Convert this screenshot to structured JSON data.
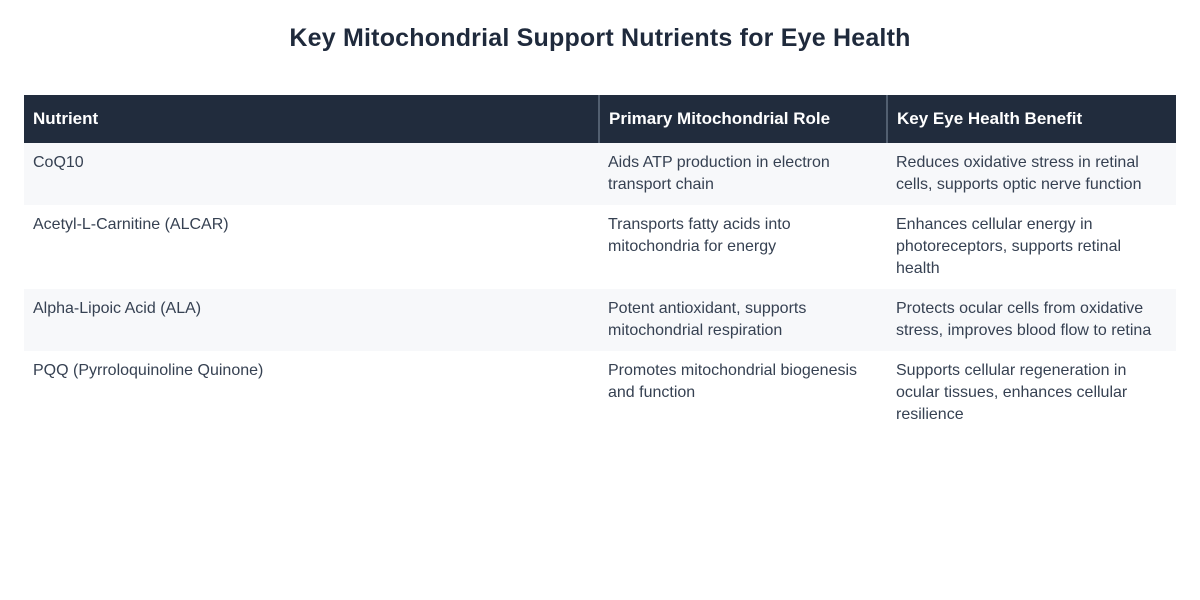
{
  "page": {
    "title": "Key Mitochondrial Support Nutrients for Eye Health"
  },
  "table": {
    "columns": [
      {
        "label": "Nutrient"
      },
      {
        "label": "Primary Mitochondrial Role"
      },
      {
        "label": "Key Eye Health Benefit"
      }
    ],
    "rows": [
      {
        "nutrient": "CoQ10",
        "role": "Aids ATP production in electron transport chain",
        "benefit": "Reduces oxidative stress in retinal cells, supports optic nerve function"
      },
      {
        "nutrient": "Acetyl-L-Carnitine (ALCAR)",
        "role": "Transports fatty acids into mitochondria for energy",
        "benefit": "Enhances cellular energy in photoreceptors, supports retinal health"
      },
      {
        "nutrient": "Alpha-Lipoic Acid (ALA)",
        "role": "Potent antioxidant, supports mitochondrial respiration",
        "benefit": "Protects ocular cells from oxidative stress, improves blood flow to retina"
      },
      {
        "nutrient": "PQQ (Pyrroloquinoline Quinone)",
        "role": "Promotes mitochondrial biogenesis and function",
        "benefit": "Supports cellular regeneration in ocular tissues, enhances cellular resilience"
      }
    ]
  },
  "colors": {
    "header_bg": "#212c3d",
    "header_text": "#ffffff",
    "header_divider": "#525f70",
    "row_stripe_bg": "#f7f8fa",
    "row_plain_bg": "#ffffff",
    "body_text": "#364152",
    "title_text": "#1f2a3c",
    "page_bg": "#ffffff"
  },
  "chart_data": {
    "type": "table",
    "title": "Key Mitochondrial Support Nutrients for Eye Health",
    "columns": [
      "Nutrient",
      "Primary Mitochondrial Role",
      "Key Eye Health Benefit"
    ],
    "rows": [
      [
        "CoQ10",
        "Aids ATP production in electron transport chain",
        "Reduces oxidative stress in retinal cells, supports optic nerve function"
      ],
      [
        "Acetyl-L-Carnitine (ALCAR)",
        "Transports fatty acids into mitochondria for energy",
        "Enhances cellular energy in photoreceptors, supports retinal health"
      ],
      [
        "Alpha-Lipoic Acid (ALA)",
        "Potent antioxidant, supports mitochondrial respiration",
        "Protects ocular cells from oxidative stress, improves blood flow to retina"
      ],
      [
        "PQQ (Pyrroloquinoline Quinone)",
        "Promotes mitochondrial biogenesis and function",
        "Supports cellular regeneration in ocular tissues, enhances cellular resilience"
      ]
    ],
    "layout": {
      "striped_rows": true,
      "header_style": "dark-navy",
      "legend": "none",
      "grid": "off"
    }
  }
}
